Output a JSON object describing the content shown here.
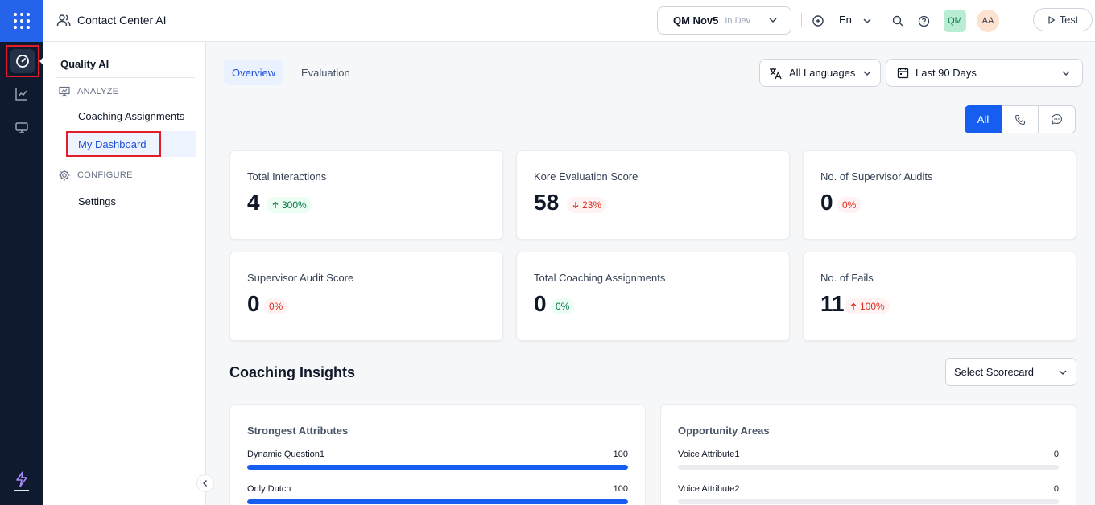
{
  "header": {
    "app_title": "Contact Center AI",
    "env_name": "QM Nov5",
    "env_tag": "In Dev",
    "language": "En",
    "avatar_qm": "QM",
    "avatar_aa": "AA",
    "test_label": "Test"
  },
  "sidebar": {
    "title": "Quality AI",
    "analyze_label": "ANALYZE",
    "configure_label": "CONFIGURE",
    "items": [
      "Coaching Assignments",
      "My Dashboard",
      "Settings"
    ]
  },
  "tabs": [
    "Overview",
    "Evaluation"
  ],
  "filters": {
    "language": "All Languages",
    "date_range": "Last 90 Days"
  },
  "channel_toggle": {
    "all_label": "All",
    "selected": "All"
  },
  "metrics": [
    {
      "label": "Total Interactions",
      "value": "4",
      "change": "300%",
      "trend": "up",
      "tone": "good"
    },
    {
      "label": "Kore Evaluation Score",
      "value": "58",
      "change": "23%",
      "trend": "down",
      "tone": "bad"
    },
    {
      "label": "No. of Supervisor Audits",
      "value": "0",
      "change": "0%",
      "trend": "none",
      "tone": "bad"
    },
    {
      "label": "Supervisor Audit Score",
      "value": "0",
      "change": "0%",
      "trend": "none",
      "tone": "bad"
    },
    {
      "label": "Total Coaching Assignments",
      "value": "0",
      "change": "0%",
      "trend": "none",
      "tone": "good"
    },
    {
      "label": "No. of Fails",
      "value": "11",
      "change": "100%",
      "trend": "up",
      "tone": "bad"
    }
  ],
  "coaching_insights": {
    "title": "Coaching Insights",
    "scorecard_placeholder": "Select Scorecard",
    "strongest": {
      "title": "Strongest Attributes",
      "items": [
        {
          "name": "Dynamic Question1",
          "value": 100
        },
        {
          "name": "Only Dutch",
          "value": 100
        }
      ]
    },
    "opportunity": {
      "title": "Opportunity Areas",
      "items": [
        {
          "name": "Voice Attribute1",
          "value": 0
        },
        {
          "name": "Voice Attribute2",
          "value": 0
        }
      ]
    }
  },
  "colors": {
    "accent": "#155eef",
    "rail": "#0f1a2e",
    "highlight": "#e11d2a"
  }
}
